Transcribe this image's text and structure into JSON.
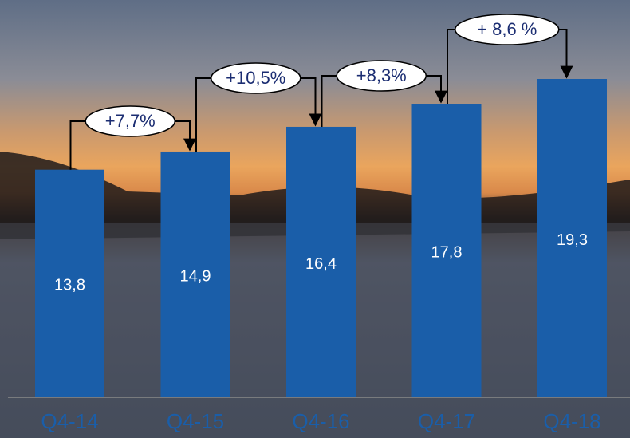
{
  "chart_data": {
    "type": "bar",
    "categories": [
      "Q4-14",
      "Q4-15",
      "Q4-16",
      "Q4-17",
      "Q4-18"
    ],
    "values": [
      13.8,
      14.9,
      16.4,
      17.8,
      19.3
    ],
    "value_labels": [
      "13,8",
      "14,9",
      "16,4",
      "17,8",
      "19,3"
    ],
    "color": "#1a5ea9",
    "growth_labels": [
      "+7,7%",
      "+10,5%",
      "+8,3%",
      "+ 8,6 %"
    ]
  }
}
